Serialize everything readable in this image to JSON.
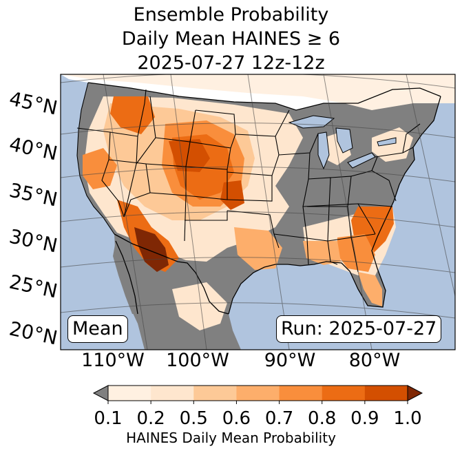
{
  "title": {
    "line1": "Ensemble Probability",
    "line2": "Daily Mean HAINES ≥ 6",
    "line3": "2025-07-27 12z-12z"
  },
  "map": {
    "region": "Contiguous United States",
    "latitude_labels": [
      "45°N",
      "40°N",
      "35°N",
      "30°N",
      "25°N",
      "20°N"
    ],
    "longitude_labels": [
      "110°W",
      "100°W",
      "90°W",
      "80°W"
    ],
    "ocean_color": "#b0c4de",
    "missing_color": "#808080",
    "statistic_label": "Mean",
    "run_label": "Run: 2025-07-27"
  },
  "colorbar": {
    "ticks": [
      "0.1",
      "0.2",
      "0.5",
      "0.6",
      "0.7",
      "0.8",
      "0.9",
      "1.0"
    ],
    "colors": [
      "#fff0e1",
      "#fee6ce",
      "#fdc997",
      "#fdae6b",
      "#f98e3c",
      "#ec6c14",
      "#d34f01"
    ],
    "under_color": "#808080",
    "over_color": "#7f2704",
    "label": "HAINES Daily Mean Probability"
  }
}
